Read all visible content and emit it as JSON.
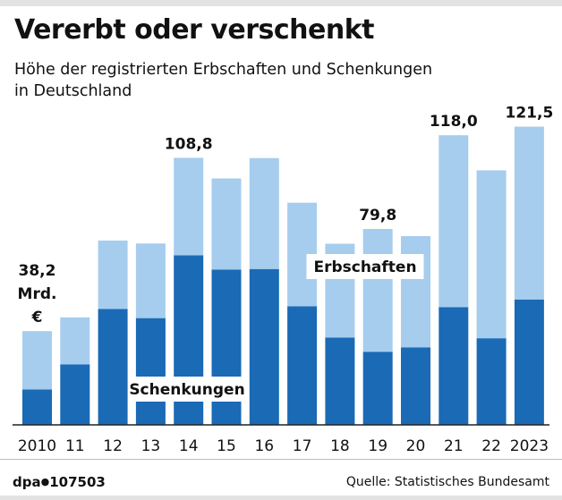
{
  "header": {
    "title": "Vererbt oder verschenkt",
    "subtitle_line1": "Höhe der registrierten Erbschaften und Schenkungen",
    "subtitle_line2": "in Deutschland"
  },
  "colors": {
    "erbschaften": "#a6cdee",
    "schenkungen": "#1a6ab6",
    "axis": "#222222",
    "text": "#111111"
  },
  "chart_data": {
    "type": "bar",
    "stacked": true,
    "categories": [
      "2010",
      "11",
      "12",
      "13",
      "14",
      "15",
      "16",
      "17",
      "18",
      "19",
      "20",
      "21",
      "22",
      "2023"
    ],
    "series": [
      {
        "name": "Schenkungen",
        "values": [
          14.4,
          24.6,
          47.2,
          43.5,
          69.1,
          63.3,
          63.5,
          48.3,
          35.6,
          29.8,
          31.6,
          48.0,
          35.3,
          51.1
        ]
      },
      {
        "name": "Erbschaften",
        "values": [
          23.8,
          19.2,
          27.9,
          30.4,
          39.7,
          37.1,
          45.2,
          42.2,
          38.2,
          50.0,
          45.3,
          70.0,
          68.4,
          70.4
        ]
      }
    ],
    "totals": [
      38.2,
      43.8,
      75.1,
      73.9,
      108.8,
      100.4,
      108.7,
      90.5,
      73.8,
      79.8,
      76.9,
      118.0,
      103.7,
      121.5
    ],
    "value_labels": [
      {
        "index": 0,
        "lines": [
          "38,2",
          "Mrd.",
          "€"
        ]
      },
      {
        "index": 4,
        "lines": [
          "108,8"
        ]
      },
      {
        "index": 9,
        "lines": [
          "79,8"
        ]
      },
      {
        "index": 11,
        "lines": [
          "118,0"
        ]
      },
      {
        "index": 13,
        "lines": [
          "121,5"
        ]
      }
    ],
    "series_labels": {
      "erbschaften": "Erbschaften",
      "schenkungen": "Schenkungen"
    },
    "unit": "Mrd. €",
    "ylim": [
      0,
      125
    ],
    "title": "Vererbt oder verschenkt"
  },
  "footer": {
    "logo_left": "dpa",
    "logo_right": "107503",
    "source": "Quelle: Statistisches Bundesamt"
  }
}
